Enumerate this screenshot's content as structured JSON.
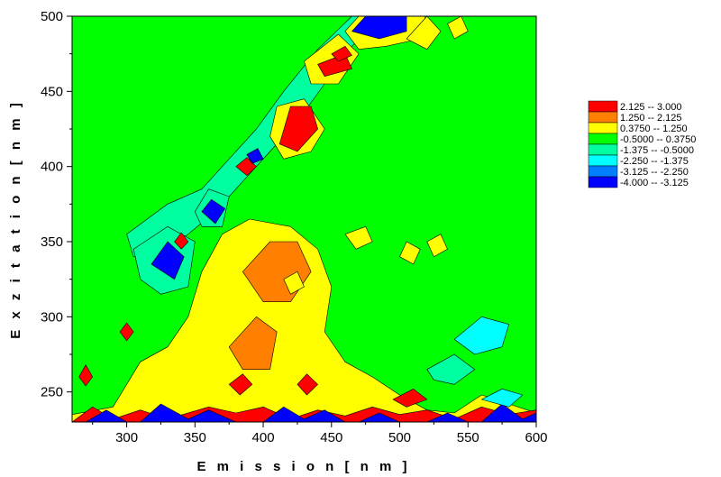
{
  "chart_data": {
    "type": "heatmap",
    "title": "",
    "xlabel": "E m i s s i o n   [ n m ]",
    "ylabel": "E x z i t a t i o n   [ n m ]",
    "xlim": [
      260,
      600
    ],
    "ylim": [
      230,
      500
    ],
    "x_ticks": [
      "300",
      "350",
      "400",
      "450",
      "500",
      "550",
      "600"
    ],
    "x_tick_values": [
      300,
      350,
      400,
      450,
      500,
      550,
      600
    ],
    "y_ticks": [
      "250",
      "300",
      "350",
      "400",
      "450",
      "500"
    ],
    "y_tick_values": [
      250,
      300,
      350,
      400,
      450,
      500
    ],
    "legend_position": "right",
    "legend": [
      {
        "label": "2.125  --  3.000",
        "color": "#ff0000"
      },
      {
        "label": "1.250  --  2.125",
        "color": "#ff8000"
      },
      {
        "label": "0.3750  --  1.250",
        "color": "#ffff00"
      },
      {
        "label": "-0.5000  --  0.3750",
        "color": "#00ff00"
      },
      {
        "label": "-1.375  --  -0.5000",
        "color": "#00ffa0"
      },
      {
        "label": "-2.250  --  -1.375",
        "color": "#00ffff"
      },
      {
        "label": "-3.125  --  -2.250",
        "color": "#0080ff"
      },
      {
        "label": "-4.000  --  -3.125",
        "color": "#0000ff"
      }
    ],
    "background_level_color": "#00ff00",
    "regions": [
      {
        "level": "yellow",
        "polygon": [
          [
            260,
            235
          ],
          [
            290,
            240
          ],
          [
            310,
            270
          ],
          [
            330,
            280
          ],
          [
            345,
            300
          ],
          [
            355,
            330
          ],
          [
            370,
            355
          ],
          [
            390,
            365
          ],
          [
            420,
            360
          ],
          [
            440,
            345
          ],
          [
            450,
            320
          ],
          [
            445,
            290
          ],
          [
            460,
            270
          ],
          [
            480,
            260
          ],
          [
            500,
            248
          ],
          [
            520,
            238
          ],
          [
            540,
            236
          ],
          [
            560,
            248
          ],
          [
            580,
            242
          ],
          [
            600,
            236
          ],
          [
            600,
            230
          ],
          [
            260,
            230
          ]
        ]
      },
      {
        "level": "orange",
        "polygon": [
          [
            385,
            330
          ],
          [
            405,
            350
          ],
          [
            425,
            350
          ],
          [
            435,
            330
          ],
          [
            420,
            310
          ],
          [
            400,
            310
          ]
        ]
      },
      {
        "level": "orange",
        "polygon": [
          [
            375,
            280
          ],
          [
            395,
            300
          ],
          [
            410,
            290
          ],
          [
            405,
            265
          ],
          [
            385,
            265
          ]
        ]
      },
      {
        "level": "yellow",
        "polygon": [
          [
            410,
            440
          ],
          [
            430,
            445
          ],
          [
            445,
            425
          ],
          [
            435,
            410
          ],
          [
            415,
            405
          ],
          [
            405,
            420
          ]
        ]
      },
      {
        "level": "red",
        "polygon": [
          [
            412,
            415
          ],
          [
            420,
            440
          ],
          [
            435,
            440
          ],
          [
            440,
            425
          ],
          [
            425,
            410
          ]
        ]
      },
      {
        "level": "yellow",
        "polygon": [
          [
            430,
            470
          ],
          [
            455,
            488
          ],
          [
            470,
            475
          ],
          [
            455,
            455
          ],
          [
            435,
            455
          ]
        ]
      },
      {
        "level": "red",
        "polygon": [
          [
            440,
            468
          ],
          [
            460,
            475
          ],
          [
            465,
            465
          ],
          [
            445,
            460
          ]
        ]
      },
      {
        "level": "yellow",
        "polygon": [
          [
            460,
            490
          ],
          [
            475,
            505
          ],
          [
            520,
            505
          ],
          [
            515,
            485
          ],
          [
            490,
            480
          ],
          [
            470,
            478
          ]
        ]
      },
      {
        "level": "blue",
        "polygon": [
          [
            465,
            490
          ],
          [
            480,
            505
          ],
          [
            505,
            505
          ],
          [
            505,
            490
          ],
          [
            485,
            485
          ]
        ]
      },
      {
        "level": "yellow",
        "polygon": [
          [
            505,
            485
          ],
          [
            520,
            500
          ],
          [
            530,
            490
          ],
          [
            520,
            478
          ]
        ]
      },
      {
        "level": "yellow",
        "polygon": [
          [
            535,
            495
          ],
          [
            545,
            500
          ],
          [
            550,
            490
          ],
          [
            540,
            485
          ]
        ]
      },
      {
        "level": "yellow",
        "polygon": [
          [
            500,
            340
          ],
          [
            505,
            350
          ],
          [
            515,
            345
          ],
          [
            510,
            335
          ]
        ]
      },
      {
        "level": "yellow",
        "polygon": [
          [
            460,
            355
          ],
          [
            475,
            360
          ],
          [
            480,
            350
          ],
          [
            468,
            345
          ]
        ]
      },
      {
        "level": "yellow",
        "polygon": [
          [
            520,
            350
          ],
          [
            530,
            355
          ],
          [
            535,
            345
          ],
          [
            525,
            340
          ]
        ]
      },
      {
        "level": "yellow",
        "polygon": [
          [
            415,
            325
          ],
          [
            425,
            330
          ],
          [
            430,
            320
          ],
          [
            420,
            315
          ]
        ]
      },
      {
        "level": "aqua",
        "polygon": [
          [
            305,
            345
          ],
          [
            330,
            360
          ],
          [
            350,
            350
          ],
          [
            345,
            320
          ],
          [
            325,
            315
          ],
          [
            310,
            325
          ]
        ]
      },
      {
        "level": "blue",
        "polygon": [
          [
            318,
            335
          ],
          [
            330,
            350
          ],
          [
            342,
            340
          ],
          [
            335,
            325
          ]
        ]
      },
      {
        "level": "aqua",
        "polygon": [
          [
            350,
            370
          ],
          [
            360,
            385
          ],
          [
            375,
            380
          ],
          [
            370,
            360
          ],
          [
            355,
            360
          ]
        ]
      },
      {
        "level": "blue",
        "polygon": [
          [
            355,
            370
          ],
          [
            362,
            378
          ],
          [
            372,
            372
          ],
          [
            365,
            362
          ]
        ]
      },
      {
        "level": "lightblue",
        "polygon": [
          [
            540,
            285
          ],
          [
            560,
            300
          ],
          [
            580,
            295
          ],
          [
            575,
            280
          ],
          [
            555,
            275
          ]
        ]
      },
      {
        "level": "aqua",
        "polygon": [
          [
            520,
            265
          ],
          [
            540,
            275
          ],
          [
            555,
            265
          ],
          [
            540,
            255
          ],
          [
            525,
            258
          ]
        ]
      },
      {
        "level": "red",
        "polygon": [
          [
            260,
            230
          ],
          [
            275,
            240
          ],
          [
            290,
            232
          ],
          [
            310,
            238
          ],
          [
            330,
            232
          ],
          [
            360,
            240
          ],
          [
            380,
            236
          ],
          [
            400,
            240
          ],
          [
            420,
            232
          ],
          [
            440,
            238
          ],
          [
            460,
            234
          ],
          [
            480,
            240
          ],
          [
            500,
            235
          ],
          [
            520,
            238
          ],
          [
            540,
            232
          ],
          [
            560,
            240
          ],
          [
            580,
            235
          ],
          [
            600,
            238
          ],
          [
            600,
            230
          ]
        ]
      },
      {
        "level": "blue",
        "polygon": [
          [
            270,
            230
          ],
          [
            285,
            238
          ],
          [
            300,
            230
          ]
        ]
      },
      {
        "level": "blue",
        "polygon": [
          [
            310,
            230
          ],
          [
            325,
            242
          ],
          [
            345,
            232
          ],
          [
            360,
            238
          ],
          [
            380,
            230
          ]
        ]
      },
      {
        "level": "blue",
        "polygon": [
          [
            400,
            230
          ],
          [
            415,
            240
          ],
          [
            430,
            232
          ],
          [
            445,
            238
          ],
          [
            460,
            230
          ]
        ]
      },
      {
        "level": "blue",
        "polygon": [
          [
            470,
            230
          ],
          [
            485,
            236
          ],
          [
            500,
            230
          ]
        ]
      },
      {
        "level": "blue",
        "polygon": [
          [
            520,
            230
          ],
          [
            535,
            236
          ],
          [
            550,
            230
          ]
        ]
      },
      {
        "level": "blue",
        "polygon": [
          [
            560,
            230
          ],
          [
            575,
            242
          ],
          [
            590,
            232
          ],
          [
            600,
            236
          ],
          [
            600,
            230
          ]
        ]
      },
      {
        "level": "red",
        "polygon": [
          [
            375,
            255
          ],
          [
            385,
            262
          ],
          [
            392,
            255
          ],
          [
            383,
            248
          ]
        ]
      },
      {
        "level": "red",
        "polygon": [
          [
            425,
            255
          ],
          [
            432,
            262
          ],
          [
            440,
            255
          ],
          [
            432,
            248
          ]
        ]
      },
      {
        "level": "red",
        "polygon": [
          [
            495,
            245
          ],
          [
            510,
            252
          ],
          [
            520,
            245
          ],
          [
            505,
            240
          ]
        ]
      },
      {
        "level": "lightblue",
        "polygon": [
          [
            560,
            245
          ],
          [
            575,
            252
          ],
          [
            590,
            248
          ],
          [
            580,
            240
          ]
        ]
      },
      {
        "level": "red",
        "polygon": [
          [
            335,
            350
          ],
          [
            340,
            356
          ],
          [
            345,
            350
          ],
          [
            340,
            345
          ]
        ]
      },
      {
        "level": "red",
        "polygon": [
          [
            265,
            260
          ],
          [
            270,
            268
          ],
          [
            275,
            260
          ],
          [
            270,
            254
          ]
        ]
      },
      {
        "level": "red",
        "polygon": [
          [
            295,
            290
          ],
          [
            300,
            296
          ],
          [
            305,
            290
          ],
          [
            300,
            284
          ]
        ]
      },
      {
        "level": "red",
        "polygon": [
          [
            380,
            400
          ],
          [
            388,
            406
          ],
          [
            395,
            400
          ],
          [
            388,
            394
          ]
        ]
      },
      {
        "level": "blue",
        "polygon": [
          [
            388,
            408
          ],
          [
            396,
            412
          ],
          [
            400,
            405
          ],
          [
            392,
            402
          ]
        ]
      },
      {
        "level": "red",
        "polygon": [
          [
            450,
            475
          ],
          [
            460,
            480
          ],
          [
            465,
            474
          ],
          [
            455,
            470
          ]
        ]
      }
    ],
    "band": {
      "level": "aqua",
      "polygon": [
        [
          300,
          355
        ],
        [
          330,
          375
        ],
        [
          355,
          385
        ],
        [
          375,
          405
        ],
        [
          395,
          425
        ],
        [
          415,
          450
        ],
        [
          440,
          478
        ],
        [
          465,
          500
        ],
        [
          485,
          500
        ],
        [
          465,
          480
        ],
        [
          445,
          455
        ],
        [
          425,
          430
        ],
        [
          405,
          410
        ],
        [
          385,
          390
        ],
        [
          365,
          370
        ],
        [
          345,
          355
        ],
        [
          325,
          342
        ],
        [
          305,
          340
        ]
      ]
    }
  }
}
